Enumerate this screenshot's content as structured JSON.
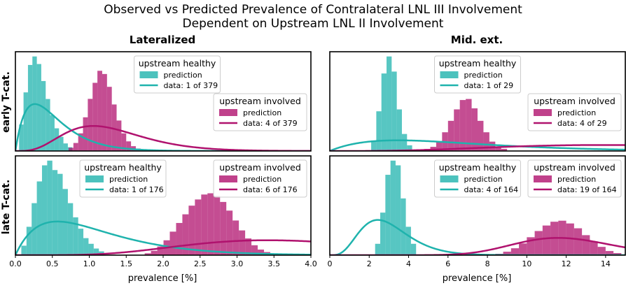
{
  "colors": {
    "healthy": "#1fb3ad",
    "involved": "#b0126e"
  },
  "chart_data": {
    "type": "histogram+line",
    "title_line1": "Observed vs Predicted Prevalence of Contralateral LNL III Involvement",
    "title_line2": "Dependent on Upstream LNL II Involvement",
    "col_titles": [
      "Lateralized",
      "Mid. ext."
    ],
    "row_titles": [
      "early T-cat.",
      "late T-cat."
    ],
    "xlabel": "prevalence [%]",
    "columns": [
      {
        "xlim": [
          0,
          4
        ],
        "ticks": [
          "0.0",
          "0.5",
          "1.0",
          "1.5",
          "2.0",
          "2.5",
          "3.0",
          "3.5",
          "4.0"
        ],
        "tick_values": [
          0,
          0.5,
          1,
          1.5,
          2,
          2.5,
          3,
          3.5,
          4
        ]
      },
      {
        "xlim": [
          0,
          15
        ],
        "ticks": [
          "0",
          "2",
          "4",
          "6",
          "8",
          "10",
          "12",
          "14"
        ],
        "tick_values": [
          0,
          2,
          4,
          6,
          8,
          10,
          12,
          14
        ]
      }
    ],
    "panels": [
      {
        "row": 0,
        "col": 0,
        "series": [
          {
            "name": "upstream healthy",
            "color": "healthy",
            "prediction": "prediction",
            "data_label": "data: 1 of 379",
            "k": 1,
            "n": 379,
            "hist": {
              "x0": 0.05,
              "bin": 0.06,
              "counts": [
                0.28,
                0.62,
                0.91,
                1.0,
                0.92,
                0.74,
                0.55,
                0.38,
                0.24,
                0.15,
                0.08,
                0.04
              ]
            }
          },
          {
            "name": "upstream involved",
            "color": "involved",
            "prediction": "prediction",
            "data_label": "data: 4 of 379",
            "k": 4,
            "n": 379,
            "hist": {
              "x0": 0.72,
              "bin": 0.065,
              "counts": [
                0.04,
                0.1,
                0.22,
                0.42,
                0.65,
                0.85,
                1.0,
                0.96,
                0.8,
                0.58,
                0.38,
                0.22,
                0.12,
                0.06,
                0.03
              ]
            }
          }
        ],
        "legends": [
          {
            "title": "upstream healthy",
            "pred": "prediction",
            "data": "data: 1 of 379",
            "color": "healthy",
            "pos": "top-center"
          },
          {
            "title": "upstream involved",
            "pred": "prediction",
            "data": "data: 4 of 379",
            "color": "involved",
            "pos": "center-right"
          }
        ]
      },
      {
        "row": 0,
        "col": 1,
        "series": [
          {
            "name": "upstream healthy",
            "color": "healthy",
            "prediction": "prediction",
            "data_label": "data: 1 of 29",
            "k": 1,
            "n": 29,
            "hist": {
              "x0": 2.1,
              "bin": 0.26,
              "counts": [
                0.1,
                0.42,
                0.82,
                1.0,
                0.84,
                0.44,
                0.18,
                0.06
              ]
            }
          },
          {
            "name": "upstream involved",
            "color": "involved",
            "prediction": "prediction",
            "data_label": "data: 4 of 29",
            "k": 4,
            "n": 29,
            "hist": {
              "x0": 4.8,
              "bin": 0.3,
              "counts": [
                0.04,
                0.08,
                0.18,
                0.36,
                0.58,
                0.8,
                0.98,
                1.0,
                0.82,
                0.58,
                0.36,
                0.18,
                0.08,
                0.04
              ]
            }
          }
        ],
        "legends": [
          {
            "title": "upstream healthy",
            "pred": "prediction",
            "data": "data: 1 of 29",
            "color": "healthy",
            "pos": "top-center"
          },
          {
            "title": "upstream involved",
            "pred": "prediction",
            "data": "data: 4 of 29",
            "color": "involved",
            "pos": "center-right"
          }
        ]
      },
      {
        "row": 1,
        "col": 0,
        "series": [
          {
            "name": "upstream healthy",
            "color": "healthy",
            "prediction": "prediction",
            "data_label": "data: 1 of 176",
            "k": 1,
            "n": 176,
            "hist": {
              "x0": 0.08,
              "bin": 0.07,
              "counts": [
                0.1,
                0.3,
                0.55,
                0.78,
                0.95,
                1.0,
                0.9,
                0.86,
                0.7,
                0.55,
                0.4,
                0.28,
                0.18,
                0.12,
                0.07,
                0.04
              ]
            }
          },
          {
            "name": "upstream involved",
            "color": "involved",
            "prediction": "prediction",
            "data_label": "data: 6 of 176",
            "k": 6,
            "n": 176,
            "hist": {
              "x0": 1.75,
              "bin": 0.085,
              "counts": [
                0.03,
                0.07,
                0.14,
                0.24,
                0.38,
                0.52,
                0.66,
                0.8,
                0.9,
                0.98,
                1.0,
                0.96,
                0.86,
                0.72,
                0.56,
                0.4,
                0.27,
                0.16,
                0.09,
                0.05
              ]
            }
          }
        ],
        "legends": [
          {
            "title": "upstream healthy",
            "pred": "prediction",
            "data": "data: 1 of 176",
            "color": "healthy",
            "pos": "top-left"
          },
          {
            "title": "upstream involved",
            "pred": "prediction",
            "data": "data: 6 of 176",
            "color": "involved",
            "pos": "top-right"
          }
        ]
      },
      {
        "row": 1,
        "col": 1,
        "series": [
          {
            "name": "upstream healthy",
            "color": "healthy",
            "prediction": "prediction",
            "data_label": "data: 4 of 164",
            "k": 4,
            "n": 164,
            "hist": {
              "x0": 2.3,
              "bin": 0.26,
              "counts": [
                0.12,
                0.45,
                0.85,
                1.0,
                0.95,
                0.6,
                0.3,
                0.12
              ]
            }
          },
          {
            "name": "upstream involved",
            "color": "involved",
            "prediction": "prediction",
            "data_label": "data: 19 of 164",
            "k": 19,
            "n": 164,
            "hist": {
              "x0": 8.4,
              "bin": 0.4,
              "counts": [
                0.04,
                0.1,
                0.2,
                0.34,
                0.52,
                0.7,
                0.86,
                0.97,
                1.0,
                0.92,
                0.78,
                0.58,
                0.4,
                0.24,
                0.12,
                0.06
              ]
            }
          }
        ],
        "legends": [
          {
            "title": "upstream healthy",
            "pred": "prediction",
            "data": "data: 4 of 164",
            "color": "healthy",
            "pos": "top-center"
          },
          {
            "title": "upstream involved",
            "pred": "prediction",
            "data": "data: 19 of 164",
            "color": "involved",
            "pos": "top-right"
          }
        ]
      }
    ]
  }
}
